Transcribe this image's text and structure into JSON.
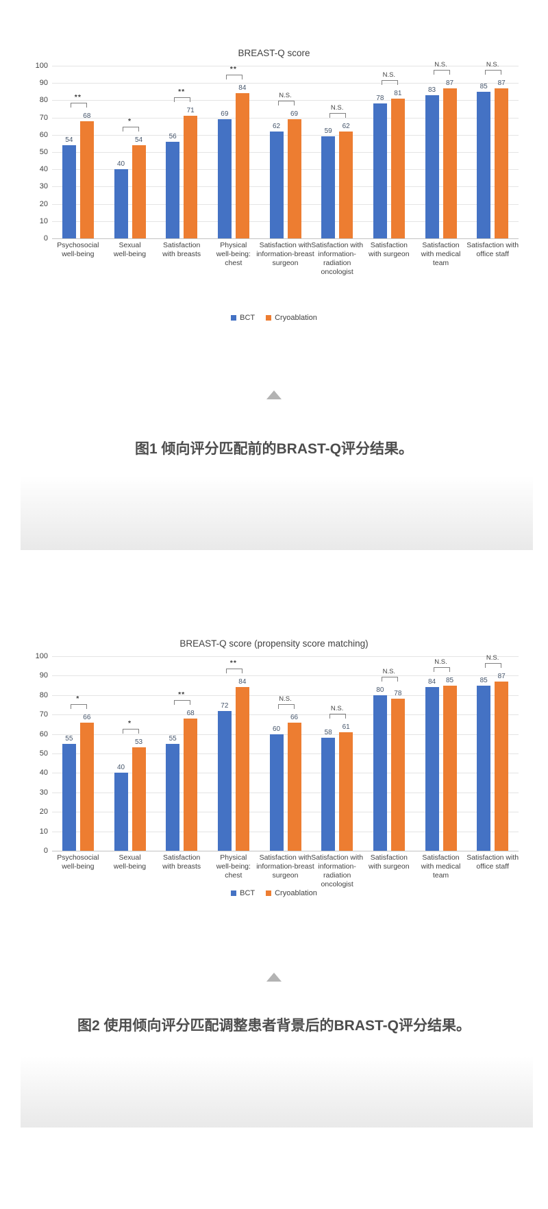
{
  "page": {
    "background_color": "#ffffff"
  },
  "figure1": {
    "caption": "图1 倾向评分匹配前的BRAST-Q评分结果。",
    "icon": "up-triangle"
  },
  "figure2": {
    "caption": "图2 使用倾向评分匹配调整患者背景后的BRAST-Q评分结果。",
    "icon": "up-triangle"
  },
  "colors": {
    "bct": "#4472C4",
    "cryoablation": "#ED7D31",
    "caption_text": "#4d4d4d",
    "axis_text": "#404040"
  },
  "chart_data": [
    {
      "type": "bar",
      "title": "BREAST-Q score",
      "categories": [
        "Psychosocial well-being",
        "Sexual well-being",
        "Satisfaction with breasts",
        "Physical well-being: chest",
        "Satisfaction with information-breast surgeon",
        "Satisfaction with information-radiation oncologist",
        "Satisfaction with surgeon",
        "Satisfaction with medical team",
        "Satisfaction with office staff"
      ],
      "categories_display": [
        "Psychosocial\nwell-being",
        "Sexual\nwell-being",
        "Satisfaction\nwith breasts",
        "Physical\nwell-being:\nchest",
        "Satisfaction with\ninformation-breast\nsurgeon",
        "Satisfaction with\ninformation-\nradiation\noncologist",
        "Satisfaction\nwith surgeon",
        "Satisfaction\nwith medical\nteam",
        "Satisfaction with\noffice staff"
      ],
      "series": [
        {
          "name": "BCT",
          "color": "#4472C4",
          "values": [
            54,
            40,
            56,
            69,
            62,
            59,
            78,
            83,
            85
          ]
        },
        {
          "name": "Cryoablation",
          "color": "#ED7D31",
          "values": [
            68,
            54,
            71,
            84,
            69,
            62,
            81,
            87,
            87
          ]
        }
      ],
      "significance": [
        "**",
        "*",
        "**",
        "**",
        "N.S.",
        "N.S.",
        "N.S.",
        "N.S.",
        "N.S."
      ],
      "ylim": [
        0,
        100
      ],
      "yticks": [
        0,
        10,
        20,
        30,
        40,
        50,
        60,
        70,
        80,
        90,
        100
      ],
      "grid": true,
      "value_labels": true,
      "legend_position": "bottom"
    },
    {
      "type": "bar",
      "title": "BREAST-Q score (propensity score matching)",
      "categories": [
        "Psychosocial well-being",
        "Sexual well-being",
        "Satisfaction with breasts",
        "Physical well-being: chest",
        "Satisfaction with information-breast surgeon",
        "Satisfaction with information-radiation oncologist",
        "Satisfaction with surgeon",
        "Satisfaction with medical team",
        "Satisfaction with office staff"
      ],
      "categories_display": [
        "Psychosocial\nwell-being",
        "Sexual\nwell-being",
        "Satisfaction\nwith breasts",
        "Physical\nwell-being:\nchest",
        "Satisfaction with\ninformation-breast\nsurgeon",
        "Satisfaction with\ninformation-\nradiation\noncologist",
        "Satisfaction\nwith surgeon",
        "Satisfaction\nwith medical\nteam",
        "Satisfaction with\noffice staff"
      ],
      "series": [
        {
          "name": "BCT",
          "color": "#4472C4",
          "values": [
            55,
            40,
            55,
            72,
            60,
            58,
            80,
            84,
            85
          ]
        },
        {
          "name": "Cryoablation",
          "color": "#ED7D31",
          "values": [
            66,
            53,
            68,
            84,
            66,
            61,
            78,
            85,
            87
          ]
        }
      ],
      "significance": [
        "*",
        "*",
        "**",
        "**",
        "N.S.",
        "N.S.",
        "N.S.",
        "N.S.",
        "N.S."
      ],
      "ylim": [
        0,
        100
      ],
      "yticks": [
        0,
        10,
        20,
        30,
        40,
        50,
        60,
        70,
        80,
        90,
        100
      ],
      "grid": true,
      "value_labels": true,
      "legend_position": "bottom"
    }
  ]
}
